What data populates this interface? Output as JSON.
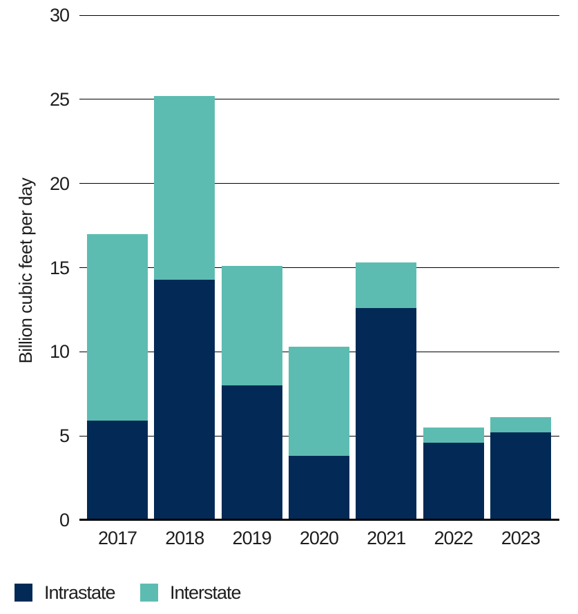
{
  "chart_data": {
    "type": "bar",
    "stacked": true,
    "title": "",
    "xlabel": "",
    "ylabel": "Billion cubic feet per day",
    "categories": [
      "2017",
      "2018",
      "2019",
      "2020",
      "2021",
      "2022",
      "2023"
    ],
    "series": [
      {
        "name": "Intrastate",
        "color": "#032a56",
        "values": [
          5.9,
          14.3,
          8.0,
          3.8,
          12.6,
          4.6,
          5.2
        ]
      },
      {
        "name": "Interstate",
        "color": "#5dbcb1",
        "values": [
          11.1,
          10.9,
          7.1,
          6.5,
          2.7,
          0.9,
          0.9
        ]
      }
    ],
    "totals": [
      17.0,
      25.2,
      15.1,
      10.3,
      15.3,
      5.5,
      6.1
    ],
    "ylim": [
      0,
      30
    ],
    "yticks": [
      0,
      5,
      10,
      15,
      20,
      25,
      30
    ],
    "grid": true,
    "gridline_color": "#000000",
    "axis_color": "#000000",
    "text_color": "#1e1e1e",
    "legend_position": "bottom-left"
  }
}
